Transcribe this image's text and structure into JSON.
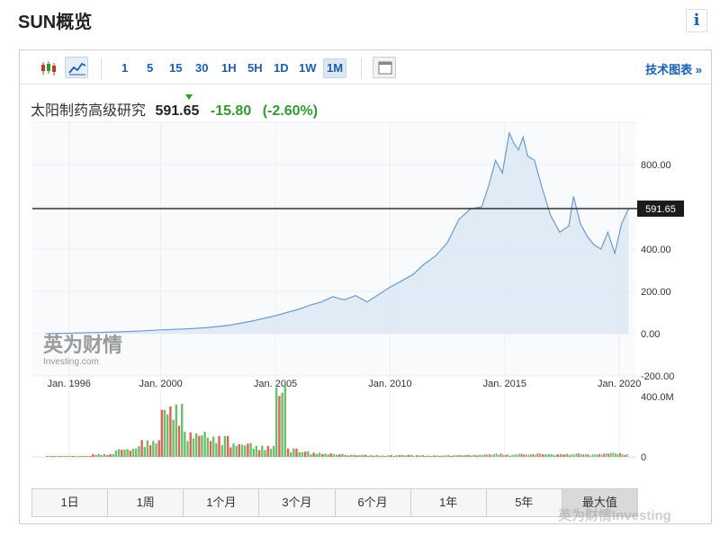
{
  "header": {
    "title": "SUN概览",
    "info_label": "i"
  },
  "toolbar": {
    "timeframes": [
      "1",
      "5",
      "15",
      "30",
      "1H",
      "5H",
      "1D",
      "1W",
      "1M"
    ],
    "active_timeframe": "1M",
    "tech_link": "技术图表 »"
  },
  "quote": {
    "name": "太阳制药高级研究",
    "price": "591.65",
    "change": "-15.80",
    "change_pct": "(-2.60%)"
  },
  "watermark": {
    "cn": "英为财情",
    "en": "Investing.com",
    "corner": "英为财情Investing"
  },
  "ranges": [
    "1日",
    "1周",
    "1个月",
    "3个月",
    "6个月",
    "1年",
    "5年",
    "最大值"
  ],
  "active_range": "最大值",
  "colors": {
    "line": "#6b9ccf",
    "fill": "#dce8f5",
    "up": "#6cc06c",
    "down": "#e0605a",
    "link": "#1a5fb4",
    "change": "#2e9d2e"
  },
  "chart_data": {
    "type": "area",
    "x": [
      1995.0,
      1996.0,
      1997.0,
      1998.0,
      1999.0,
      2000.0,
      2001.0,
      2002.0,
      2003.0,
      2004.0,
      2005.0,
      2005.5,
      2006.0,
      2006.5,
      2007.0,
      2007.5,
      2008.0,
      2008.5,
      2009.0,
      2009.5,
      2010.0,
      2010.5,
      2011.0,
      2011.5,
      2012.0,
      2012.5,
      2013.0,
      2013.5,
      2014.0,
      2014.3,
      2014.6,
      2014.9,
      2015.2,
      2015.4,
      2015.6,
      2015.8,
      2016.0,
      2016.3,
      2016.6,
      2017.0,
      2017.4,
      2017.8,
      2018.0,
      2018.3,
      2018.6,
      2018.9,
      2019.2,
      2019.5,
      2019.8,
      2020.1,
      2020.4
    ],
    "y": [
      0,
      2,
      5,
      8,
      12,
      18,
      22,
      28,
      40,
      60,
      85,
      100,
      115,
      135,
      150,
      175,
      160,
      180,
      150,
      185,
      220,
      250,
      280,
      330,
      370,
      430,
      540,
      590,
      600,
      700,
      820,
      760,
      950,
      900,
      870,
      930,
      840,
      820,
      700,
      560,
      480,
      510,
      650,
      520,
      460,
      420,
      400,
      480,
      380,
      520,
      591.65
    ],
    "volume": [
      0,
      0,
      5,
      20,
      60,
      120,
      380,
      180,
      150,
      100,
      80,
      530,
      60,
      40,
      30,
      25,
      20,
      15,
      15,
      12,
      10,
      12,
      14,
      12,
      10,
      10,
      12,
      14,
      15,
      18,
      20,
      25,
      18,
      15,
      20,
      22,
      18,
      20,
      25,
      20,
      18,
      22,
      20,
      25,
      20,
      18,
      22,
      25,
      30,
      28,
      20
    ],
    "last_price": "591.65",
    "y_ticks": [
      "800.00",
      "400.00",
      "200.00",
      "0.00",
      "-200.00"
    ],
    "x_ticks": [
      "Jan. 1996",
      "Jan. 2000",
      "Jan. 2005",
      "Jan. 2010",
      "Jan. 2015",
      "Jan. 2020"
    ],
    "volume_ticks": [
      "400.0M",
      "0"
    ],
    "ylim": [
      -200,
      1000
    ],
    "volume_max": 400
  }
}
